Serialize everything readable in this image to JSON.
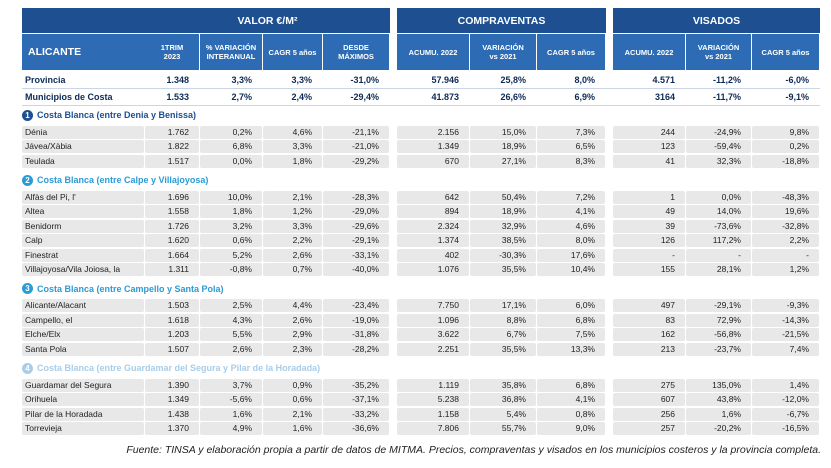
{
  "header": {
    "groups": [
      "VALOR €/M²",
      "COMPRAVENTAS",
      "VISADOS"
    ],
    "region": "ALICANTE",
    "columns": [
      [
        "1TRIM",
        "2023"
      ],
      [
        "% VARIACIÓN",
        "INTERANUAL"
      ],
      [
        "CAGR 5 años"
      ],
      [
        "DESDE",
        "MÁXIMOS"
      ],
      [
        "ACUMU. 2022"
      ],
      [
        "VARIACIÓN",
        "vs 2021"
      ],
      [
        "CAGR 5 años"
      ],
      [
        "ACUMU. 2022"
      ],
      [
        "VARIACIÓN",
        "vs 2021"
      ],
      [
        "CAGR 5 años"
      ]
    ]
  },
  "summary_rows": [
    [
      "Provincia",
      "1.348",
      "3,3%",
      "3,3%",
      "-31,0%",
      "57.946",
      "25,8%",
      "8,0%",
      "4.571",
      "-11,2%",
      "-6,0%"
    ],
    [
      "Municipios de Costa",
      "1.533",
      "2,7%",
      "2,4%",
      "-29,4%",
      "41.873",
      "26,6%",
      "6,9%",
      "3164",
      "-11,7%",
      "-9,1%"
    ]
  ],
  "sections": [
    {
      "number": "1",
      "title": "Costa Blanca (entre Denia y Benissa)",
      "rows": [
        [
          "Dénia",
          "1.762",
          "0,2%",
          "4,6%",
          "-21,1%",
          "2.156",
          "15,0%",
          "7,3%",
          "244",
          "-24,9%",
          "9,8%"
        ],
        [
          "Jávea/Xàbia",
          "1.822",
          "6,8%",
          "3,3%",
          "-21,0%",
          "1.349",
          "18,9%",
          "6,5%",
          "123",
          "-59,4%",
          "0,2%"
        ],
        [
          "Teulada",
          "1.517",
          "0,0%",
          "1,8%",
          "-29,2%",
          "670",
          "27,1%",
          "8,3%",
          "41",
          "32,3%",
          "-18,8%"
        ]
      ]
    },
    {
      "number": "2",
      "title": "Costa Blanca (entre Calpe y Villajoyosa)",
      "rows": [
        [
          "Alfàs del Pi, l'",
          "1.696",
          "10,0%",
          "2,1%",
          "-28,3%",
          "642",
          "50,4%",
          "7,2%",
          "1",
          "0,0%",
          "-48,3%"
        ],
        [
          "Altea",
          "1.558",
          "1,8%",
          "1,2%",
          "-29,0%",
          "894",
          "18,9%",
          "4,1%",
          "49",
          "14,0%",
          "19,6%"
        ],
        [
          "Benidorm",
          "1.726",
          "3,2%",
          "3,3%",
          "-29,6%",
          "2.324",
          "32,9%",
          "4,6%",
          "39",
          "-73,6%",
          "-32,8%"
        ],
        [
          "Calp",
          "1.620",
          "0,6%",
          "2,2%",
          "-29,1%",
          "1.374",
          "38,5%",
          "8,0%",
          "126",
          "117,2%",
          "2,2%"
        ],
        [
          "Finestrat",
          "1.664",
          "5,2%",
          "2,6%",
          "-33,1%",
          "402",
          "-30,3%",
          "17,6%",
          "-",
          "-",
          "-"
        ],
        [
          "Villajoyosa/Vila Joiosa, la",
          "1.311",
          "-0,8%",
          "0,7%",
          "-40,0%",
          "1.076",
          "35,5%",
          "10,4%",
          "155",
          "28,1%",
          "1,2%"
        ]
      ]
    },
    {
      "number": "3",
      "title": "Costa Blanca (entre Campello y Santa Pola)",
      "rows": [
        [
          "Alicante/Alacant",
          "1.503",
          "2,5%",
          "4,4%",
          "-23,4%",
          "7.750",
          "17,1%",
          "6,0%",
          "497",
          "-29,1%",
          "-9,3%"
        ],
        [
          "Campello, el",
          "1.618",
          "4,3%",
          "2,6%",
          "-19,0%",
          "1.096",
          "8,8%",
          "6,8%",
          "83",
          "72,9%",
          "-14,3%"
        ],
        [
          "Elche/Elx",
          "1.203",
          "5,5%",
          "2,9%",
          "-31,8%",
          "3.622",
          "6,7%",
          "7,5%",
          "162",
          "-56,8%",
          "-21,5%"
        ],
        [
          "Santa Pola",
          "1.507",
          "2,6%",
          "2,3%",
          "-28,2%",
          "2.251",
          "35,5%",
          "13,3%",
          "213",
          "-23,7%",
          "7,4%"
        ]
      ]
    },
    {
      "number": "4",
      "title": "Costa Blanca (entre Guardamar del Segura y Pilar de la Horadada)",
      "rows": [
        [
          "Guardamar del Segura",
          "1.390",
          "3,7%",
          "0,9%",
          "-35,2%",
          "1.119",
          "35,8%",
          "6,8%",
          "275",
          "135,0%",
          "1,4%"
        ],
        [
          "Orihuela",
          "1.349",
          "-5,6%",
          "0,6%",
          "-37,1%",
          "5.238",
          "36,8%",
          "4,1%",
          "607",
          "43,8%",
          "-12,0%"
        ],
        [
          "Pilar de la Horadada",
          "1.438",
          "1,6%",
          "2,1%",
          "-33,2%",
          "1.158",
          "5,4%",
          "0,8%",
          "256",
          "1,6%",
          "-6,7%"
        ],
        [
          "Torrevieja",
          "1.370",
          "4,9%",
          "1,6%",
          "-36,6%",
          "7.806",
          "55,7%",
          "9,0%",
          "257",
          "-20,2%",
          "-16,5%"
        ]
      ]
    }
  ],
  "footnote": "Fuente: TINSA y elaboración propia a partir de datos de MITMA. Precios, compraventas y visados en los municipios costeros y la provincia completa."
}
